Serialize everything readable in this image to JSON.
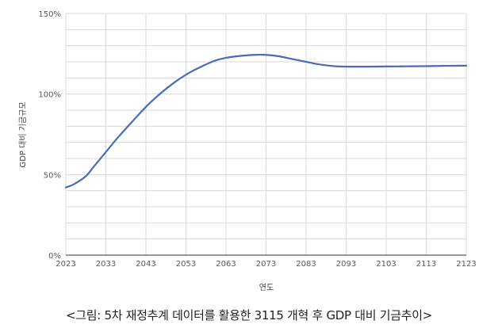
{
  "chart_data": {
    "type": "line",
    "title": "",
    "xlabel": "연도",
    "ylabel": "GDP 대비 기금규모",
    "ylim": [
      0,
      150
    ],
    "xlim": [
      2023,
      2123
    ],
    "grid": true,
    "legend": null,
    "x_ticks": [
      "2023",
      "2033",
      "2043",
      "2053",
      "2063",
      "2073",
      "2083",
      "2093",
      "2103",
      "2113",
      "2123"
    ],
    "y_ticks": [
      "0%",
      "50%",
      "100%",
      "150%"
    ],
    "series": [
      {
        "name": "GDP 대비 기금",
        "color": "#4A6BB5",
        "x": [
          2023,
          2025,
          2028,
          2030,
          2033,
          2036,
          2040,
          2043,
          2046,
          2050,
          2053,
          2056,
          2060,
          2063,
          2066,
          2070,
          2073,
          2076,
          2080,
          2083,
          2086,
          2090,
          2093,
          2098,
          2103,
          2108,
          2113,
          2118,
          2123
        ],
        "values": [
          42,
          44,
          49,
          55,
          64,
          73,
          84,
          92,
          99,
          107,
          112,
          116,
          120.5,
          122.5,
          123.5,
          124.3,
          124.3,
          123.5,
          121.5,
          120,
          118.5,
          117.3,
          117,
          117,
          117.1,
          117.2,
          117.3,
          117.5,
          117.6
        ]
      }
    ]
  },
  "caption": "<그림: 5차 재정추계 데이터를 활용한 3115 개혁 후 GDP 대비 기금추이>"
}
